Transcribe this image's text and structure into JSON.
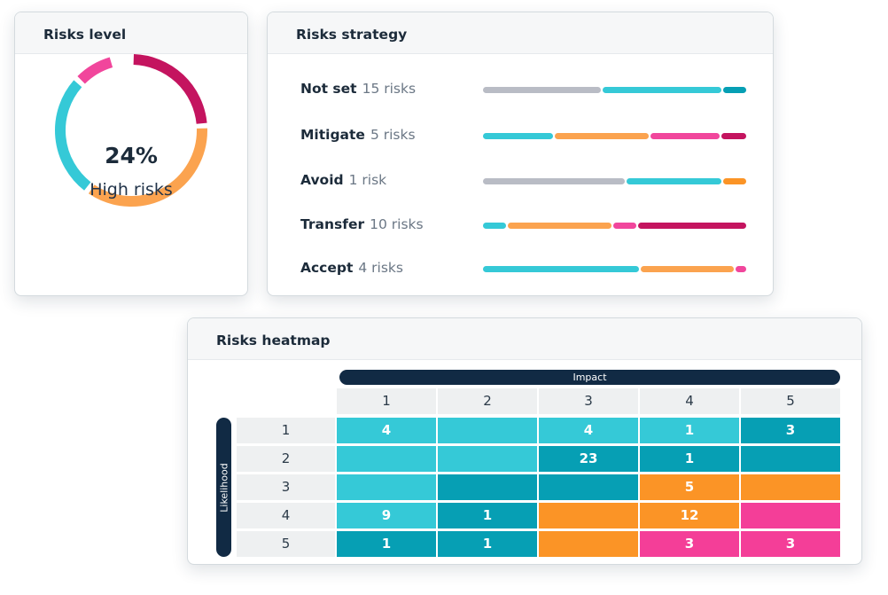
{
  "colors": {
    "gray": "#b9bcc5",
    "cyan": "#35c9d7",
    "teal": "#069fb4",
    "orange": "#fba34f",
    "pink": "#f1469c",
    "crimson": "#c4145f",
    "heat_orange": "#fb9426",
    "heat_pink": "#f43e98",
    "navy": "#112a44"
  },
  "risks_level": {
    "title": "Risks level",
    "percent": "24%",
    "label": "High risks",
    "segments": [
      {
        "name": "crimson",
        "color": "#c4145f",
        "fraction": 0.24
      },
      {
        "name": "orange",
        "color": "#fba34f",
        "fraction": 0.36
      },
      {
        "name": "cyan",
        "color": "#35c9d7",
        "fraction": 0.27
      },
      {
        "name": "pink",
        "color": "#f1469c",
        "fraction": 0.09
      }
    ]
  },
  "risks_strategy": {
    "title": "Risks strategy",
    "rows": [
      {
        "name": "Not set",
        "count": "15 risks",
        "segments": [
          {
            "color": "#b9bcc5",
            "fraction": 0.455
          },
          {
            "color": "#35c9d7",
            "fraction": 0.455
          },
          {
            "color": "#069fb4",
            "fraction": 0.09
          }
        ]
      },
      {
        "name": "Mitigate",
        "count": "5 risks",
        "segments": [
          {
            "color": "#35c9d7",
            "fraction": 0.27
          },
          {
            "color": "#fba34f",
            "fraction": 0.365
          },
          {
            "color": "#f1469c",
            "fraction": 0.27
          },
          {
            "color": "#c4145f",
            "fraction": 0.095
          }
        ]
      },
      {
        "name": "Avoid",
        "count": "1 risk",
        "segments": [
          {
            "color": "#b9bcc5",
            "fraction": 0.545
          },
          {
            "color": "#35c9d7",
            "fraction": 0.365
          },
          {
            "color": "#fb9426",
            "fraction": 0.09
          }
        ]
      },
      {
        "name": "Transfer",
        "count": "10 risks",
        "segments": [
          {
            "color": "#35c9d7",
            "fraction": 0.09
          },
          {
            "color": "#fba34f",
            "fraction": 0.4
          },
          {
            "color": "#f1469c",
            "fraction": 0.09
          },
          {
            "color": "#c4145f",
            "fraction": 0.42
          }
        ]
      },
      {
        "name": "Accept",
        "count": "4 risks",
        "segments": [
          {
            "color": "#35c9d7",
            "fraction": 0.6
          },
          {
            "color": "#fba34f",
            "fraction": 0.36
          },
          {
            "color": "#f1469c",
            "fraction": 0.04
          }
        ]
      }
    ]
  },
  "heatmap": {
    "title": "Risks heatmap",
    "impact_label": "Impact",
    "likelihood_label": "Likelihood",
    "columns": [
      "1",
      "2",
      "3",
      "4",
      "5"
    ],
    "rows": [
      {
        "label": "1",
        "cells": [
          {
            "value": "4",
            "color": "#35c9d7"
          },
          {
            "value": "",
            "color": "#35c9d7"
          },
          {
            "value": "4",
            "color": "#35c9d7"
          },
          {
            "value": "1",
            "color": "#35c9d7"
          },
          {
            "value": "3",
            "color": "#069fb4"
          }
        ]
      },
      {
        "label": "2",
        "cells": [
          {
            "value": "",
            "color": "#35c9d7"
          },
          {
            "value": "",
            "color": "#35c9d7"
          },
          {
            "value": "23",
            "color": "#069fb4"
          },
          {
            "value": "1",
            "color": "#069fb4"
          },
          {
            "value": "",
            "color": "#069fb4"
          }
        ]
      },
      {
        "label": "3",
        "cells": [
          {
            "value": "",
            "color": "#35c9d7"
          },
          {
            "value": "",
            "color": "#069fb4"
          },
          {
            "value": "",
            "color": "#069fb4"
          },
          {
            "value": "5",
            "color": "#fb9426"
          },
          {
            "value": "",
            "color": "#fb9426"
          }
        ]
      },
      {
        "label": "4",
        "cells": [
          {
            "value": "9",
            "color": "#35c9d7"
          },
          {
            "value": "1",
            "color": "#069fb4"
          },
          {
            "value": "",
            "color": "#fb9426"
          },
          {
            "value": "12",
            "color": "#fb9426"
          },
          {
            "value": "",
            "color": "#f43e98"
          }
        ]
      },
      {
        "label": "5",
        "cells": [
          {
            "value": "1",
            "color": "#069fb4"
          },
          {
            "value": "1",
            "color": "#069fb4"
          },
          {
            "value": "",
            "color": "#fb9426"
          },
          {
            "value": "3",
            "color": "#f43e98"
          },
          {
            "value": "3",
            "color": "#f43e98"
          }
        ]
      }
    ]
  }
}
